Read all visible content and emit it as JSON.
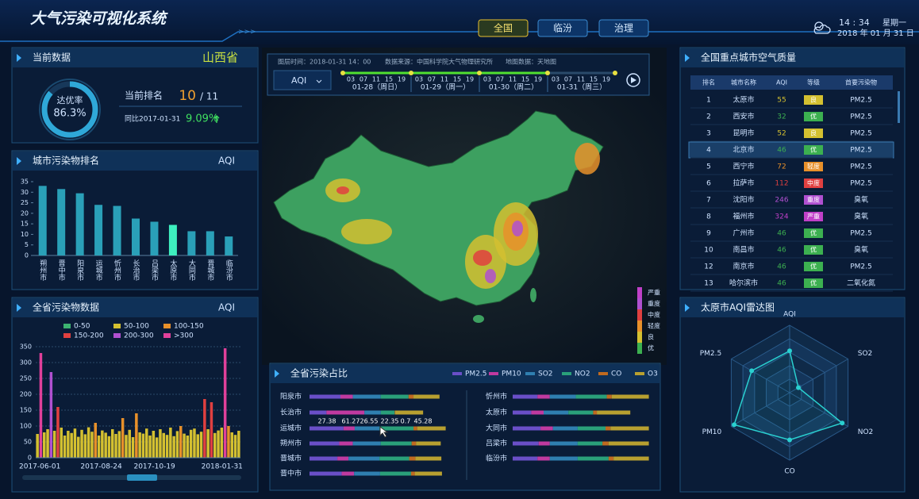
{
  "header": {
    "title": "大气污染可视化系统",
    "tabs": [
      "全国",
      "临汾",
      "治理"
    ],
    "time": "14 : 34",
    "weekday": "星期一",
    "date": "2018 年 01 月 31 日"
  },
  "current": {
    "title": "当前数据",
    "province": "山西省",
    "ring": {
      "label": "达优率",
      "value": 86.3,
      "value_label": "86.3%"
    },
    "rank_label": "当前排名",
    "rank": "10",
    "rank_total": "/ 11",
    "compare_label": "同比2017-01-31",
    "compare_value": "9.09%"
  },
  "ranking": {
    "title": "城市污染物排名",
    "unit": "AQI",
    "type": "bar",
    "categories": [
      "朔州市",
      "晋中市",
      "阳泉市",
      "运城市",
      "忻州市",
      "长治市",
      "吕梁市",
      "太原市",
      "大同市",
      "晋城市",
      "临汾市"
    ],
    "values": [
      33,
      31.5,
      29.5,
      24,
      23.5,
      17.5,
      16,
      14.5,
      11.5,
      11.5,
      9
    ],
    "colors": [
      "#2aa0b8",
      "#2aa0b8",
      "#2aa0b8",
      "#2aa0b8",
      "#2aa0b8",
      "#2aa0b8",
      "#2aa0b8",
      "#3ef0c0",
      "#2aa0b8",
      "#2aa0b8",
      "#2aa0b8"
    ],
    "ylim": [
      0,
      35
    ],
    "yticks": [
      0,
      5,
      10,
      15,
      20,
      25,
      30,
      35
    ]
  },
  "trend": {
    "title": "全省污染物数据",
    "unit": "AQI",
    "type": "bar",
    "levels": [
      {
        "label": "0-50",
        "color": "#3cb371",
        "range": [
          0,
          50
        ]
      },
      {
        "label": "50-100",
        "color": "#d4c030",
        "range": [
          50,
          100
        ]
      },
      {
        "label": "100-150",
        "color": "#e8902a",
        "range": [
          100,
          150
        ]
      },
      {
        "label": "150-200",
        "color": "#e04040",
        "range": [
          150,
          200
        ]
      },
      {
        "label": "200-300",
        "color": "#b050d0",
        "range": [
          200,
          300
        ]
      },
      {
        "label": ">300",
        "color": "#e0409a",
        "range": [
          300,
          null
        ]
      }
    ],
    "values": [
      75,
      330,
      80,
      90,
      270,
      85,
      160,
      95,
      70,
      85,
      78,
      92,
      66,
      88,
      74,
      96,
      82,
      110,
      70,
      86,
      79,
      68,
      90,
      75,
      84,
      125,
      72,
      88,
      65,
      140,
      80,
      76,
      92,
      70,
      85,
      64,
      90,
      78,
      72,
      95,
      68,
      84,
      100,
      76,
      70,
      88,
      92,
      74,
      82,
      185,
      90,
      175,
      78,
      86,
      95,
      345,
      100,
      80,
      72,
      85
    ],
    "ylim": [
      0,
      350
    ],
    "yticks": [
      0,
      50,
      100,
      150,
      200,
      250,
      300,
      350
    ],
    "x_labels": [
      "2017-06-01",
      "2017-08-24",
      "2017-10-19",
      "2018-01-31"
    ]
  },
  "map": {
    "layer_time": "图层时间：2018-01-31 14：00",
    "source": "数据来源：中国科学院大气物理研究所",
    "map_source": "地图数据：天地图",
    "selector": "AQI",
    "hours": [
      "03",
      "07",
      "11",
      "15",
      "19"
    ],
    "days": [
      "01-28（周日）",
      "01-29（周一）",
      "01-30（周二）",
      "01-31（周三）"
    ],
    "legend": [
      {
        "label": "严重",
        "color": "#c040c8"
      },
      {
        "label": "重度",
        "color": "#b050d0"
      },
      {
        "label": "中度",
        "color": "#e04040"
      },
      {
        "label": "轻度",
        "color": "#e8902a"
      },
      {
        "label": "良",
        "color": "#d4c030"
      },
      {
        "label": "优",
        "color": "#3cb050"
      }
    ]
  },
  "share": {
    "title": "全省污染占比",
    "pollutants": [
      {
        "name": "PM2.5",
        "color": "#6a4fc8"
      },
      {
        "name": "PM10",
        "color": "#c03aa0"
      },
      {
        "name": "SO2",
        "color": "#2f7fb0"
      },
      {
        "name": "NO2",
        "color": "#2aa07a"
      },
      {
        "name": "CO",
        "color": "#c06a20"
      },
      {
        "name": "O3",
        "color": "#b8a030"
      }
    ],
    "cities_left": [
      {
        "name": "阳泉市",
        "values": [
          50,
          20,
          45,
          45,
          8,
          42
        ]
      },
      {
        "name": "长治市",
        "values": [
          27.38,
          61.27,
          26.55,
          22.35,
          0.7,
          45.28
        ]
      },
      {
        "name": "运城市",
        "values": [
          55,
          18,
          40,
          55,
          6,
          46
        ]
      },
      {
        "name": "朔州市",
        "values": [
          48,
          22,
          45,
          50,
          7,
          40
        ]
      },
      {
        "name": "晋城市",
        "values": [
          45,
          18,
          50,
          48,
          10,
          42
        ]
      },
      {
        "name": "晋中市",
        "values": [
          52,
          20,
          42,
          50,
          6,
          44
        ]
      }
    ],
    "cities_right": [
      {
        "name": "忻州市",
        "values": [
          40,
          20,
          42,
          50,
          8,
          60
        ]
      },
      {
        "name": "太原市",
        "values": [
          30,
          20,
          40,
          40,
          6,
          54
        ]
      },
      {
        "name": "大同市",
        "values": [
          45,
          20,
          40,
          45,
          8,
          62
        ]
      },
      {
        "name": "吕梁市",
        "values": [
          42,
          18,
          45,
          40,
          10,
          65
        ]
      },
      {
        "name": "临汾市",
        "values": [
          40,
          20,
          45,
          50,
          8,
          57
        ]
      }
    ]
  },
  "table": {
    "title": "全国重点城市空气质量",
    "headers": [
      "排名",
      "城市名称",
      "AQI",
      "等级",
      "首要污染物"
    ],
    "rows": [
      [
        "1",
        "太原市",
        "55",
        "良",
        "PM2.5"
      ],
      [
        "2",
        "西安市",
        "32",
        "优",
        "PM2.5"
      ],
      [
        "3",
        "昆明市",
        "52",
        "良",
        "PM2.5"
      ],
      [
        "4",
        "北京市",
        "46",
        "优",
        "PM2.5"
      ],
      [
        "5",
        "西宁市",
        "72",
        "轻度",
        "PM2.5"
      ],
      [
        "6",
        "拉萨市",
        "112",
        "中度",
        "PM2.5"
      ],
      [
        "7",
        "沈阳市",
        "246",
        "重度",
        "臭氧"
      ],
      [
        "8",
        "福州市",
        "324",
        "严重",
        "臭氧"
      ],
      [
        "9",
        "广州市",
        "46",
        "优",
        "PM2.5"
      ],
      [
        "10",
        "南昌市",
        "46",
        "优",
        "臭氧"
      ],
      [
        "12",
        "南京市",
        "46",
        "优",
        "PM2.5"
      ],
      [
        "13",
        "哈尔滨市",
        "46",
        "优",
        "二氧化氮"
      ]
    ]
  },
  "radar": {
    "title": "太原市AQI雷达图",
    "axes": [
      "AQI",
      "SO2",
      "NO2",
      "CO",
      "PM10",
      "PM2.5"
    ],
    "values": [
      62,
      15,
      90,
      70,
      95,
      65
    ],
    "rlim": [
      0,
      100
    ],
    "color": "#2ad0d0"
  }
}
